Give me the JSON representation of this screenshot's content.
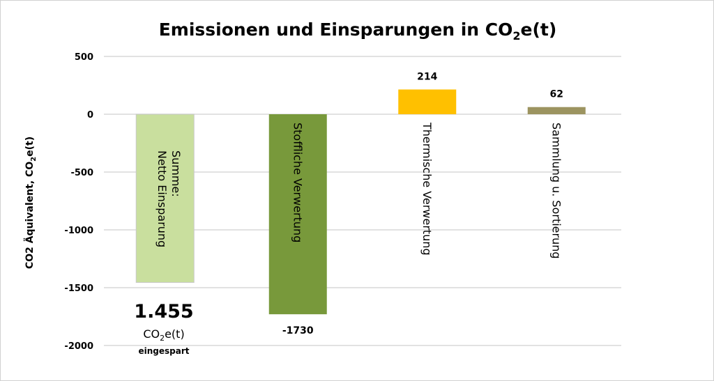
{
  "chart_data": {
    "type": "bar",
    "title": "Emissionen und Einsparungen in CO",
    "title_sub": "2",
    "title_tail": "e(t)",
    "ylabel": "CO2 Äquivalent, CO",
    "ylabel_sub": "2",
    "ylabel_tail": "e(t)",
    "ylim": [
      -2000,
      500
    ],
    "yticks": [
      500,
      0,
      -500,
      -1000,
      -1500,
      -2000
    ],
    "grid": true,
    "categories": [
      "Summe:\nNetto Einsparung",
      "Stoffliche Verwertung",
      "Thermische Verwertung",
      "Sammlung u. Sortierung"
    ],
    "values": [
      -1455,
      -1730,
      214,
      62
    ],
    "colors": [
      "#c9df9e",
      "#78993b",
      "#ffc000",
      "#9c9460"
    ],
    "data_labels": [
      "",
      "-1730",
      "214",
      "62"
    ],
    "annotation": {
      "value": "1.455",
      "unit": "CO",
      "unit_sub": "2",
      "unit_tail": "e(t)",
      "note": "eingespart"
    }
  }
}
